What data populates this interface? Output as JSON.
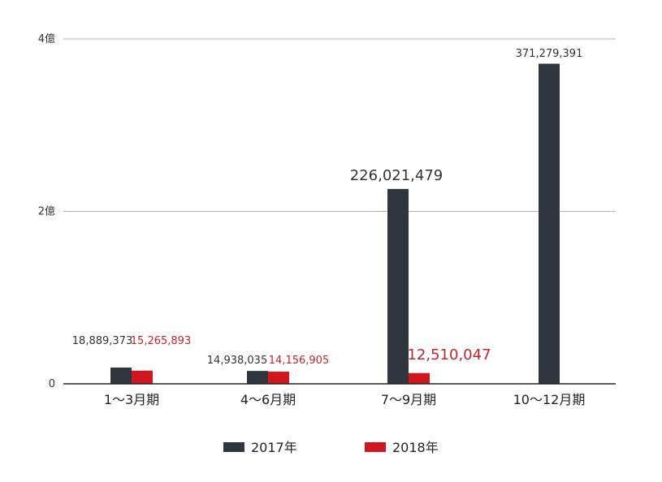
{
  "chart_data": {
    "type": "bar",
    "categories": [
      "1～3月期",
      "4～6月期",
      "7～9月期",
      "10～12月期"
    ],
    "series": [
      {
        "name": "2017年",
        "color": "#2f363d",
        "values": [
          18889373,
          14938035,
          226021479,
          371279391
        ],
        "labels": [
          "18,889,373",
          "14,938,035",
          "226,021,479",
          "371,279,391"
        ]
      },
      {
        "name": "2018年",
        "color": "#d0161f",
        "values": [
          15265893,
          14156905,
          12510047,
          null
        ],
        "labels": [
          "15,265,893",
          "14,156,905",
          "12,510,047",
          ""
        ]
      }
    ],
    "y_ticks": [
      {
        "value": 0,
        "label": "0"
      },
      {
        "value": 200000000,
        "label": "2億"
      },
      {
        "value": 400000000,
        "label": "4億"
      }
    ],
    "ylim": [
      0,
      400000000
    ],
    "grid": true,
    "legend_position": "bottom"
  }
}
